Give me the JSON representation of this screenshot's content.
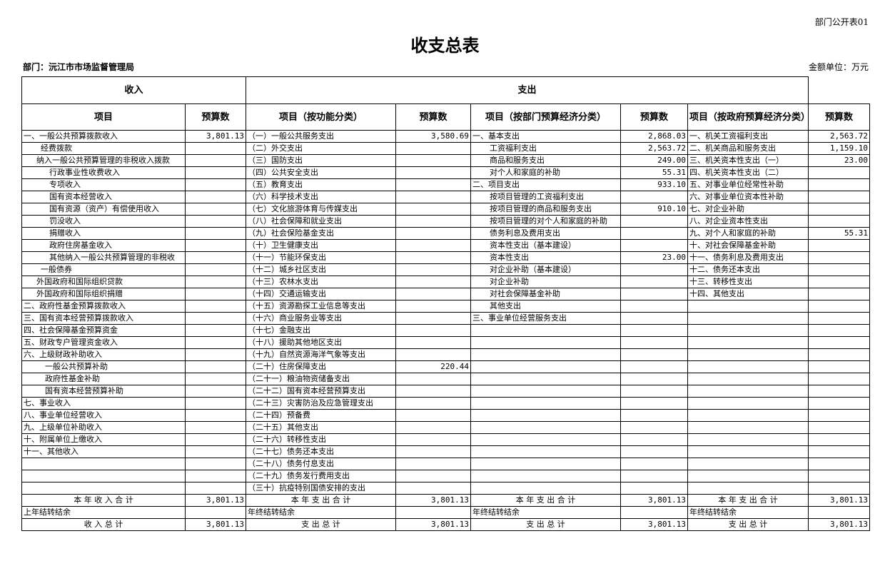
{
  "form_no": "部门公开表01",
  "title": "收支总表",
  "department": "部门：沅江市市场监督管理局",
  "unit": "金额单位：万元",
  "headers": {
    "income": "收入",
    "expense": "支出",
    "item": "项目",
    "budget": "预算数",
    "item_func": "项目（按功能分类）",
    "item_dept": "项目（按部门预算经济分类）",
    "item_gov": "项目（按政府预算经济分类）"
  },
  "income": [
    [
      "一、一般公共预算拨款收入",
      "3,801.13",
      0
    ],
    [
      "经费拨款",
      "",
      2
    ],
    [
      "纳入一般公共预算管理的非税收入拨款",
      "",
      1.5
    ],
    [
      "行政事业性收费收入",
      "",
      3
    ],
    [
      "专项收入",
      "",
      3
    ],
    [
      "国有资本经营收入",
      "",
      3
    ],
    [
      "国有资源（资产）有偿使用收入",
      "",
      3
    ],
    [
      "罚没收入",
      "",
      3
    ],
    [
      "捐赠收入",
      "",
      3
    ],
    [
      "政府住房基金收入",
      "",
      3
    ],
    [
      "其他纳入一般公共预算管理的非税收",
      "",
      3
    ],
    [
      "一般债券",
      "",
      2
    ],
    [
      "外国政府和国际组织贷款",
      "",
      1.5
    ],
    [
      "外国政府和国际组织捐赠",
      "",
      1.5
    ],
    [
      "二、政府性基金预算拨款收入",
      "",
      0
    ],
    [
      "三、国有资本经营预算拨款收入",
      "",
      0
    ],
    [
      "四、社会保障基金预算资金",
      "",
      0
    ],
    [
      "五、财政专户管理资金收入",
      "",
      0
    ],
    [
      "六、上级财政补助收入",
      "",
      0
    ],
    [
      "一般公共预算补助",
      "",
      2.5
    ],
    [
      "政府性基金补助",
      "",
      2.5
    ],
    [
      "国有资本经营预算补助",
      "",
      2.5
    ],
    [
      "七、事业收入",
      "",
      0
    ],
    [
      "八、事业单位经营收入",
      "",
      0
    ],
    [
      "九、上级单位补助收入",
      "",
      0
    ],
    [
      "十、附属单位上缴收入",
      "",
      0
    ],
    [
      "十一、其他收入",
      "",
      0
    ]
  ],
  "func": [
    [
      "（一）一般公共服务支出",
      "3,580.69"
    ],
    [
      "（二）外交支出",
      ""
    ],
    [
      "（三）国防支出",
      ""
    ],
    [
      "（四）公共安全支出",
      ""
    ],
    [
      "（五）教育支出",
      ""
    ],
    [
      "（六）科学技术支出",
      ""
    ],
    [
      "（七）文化旅游体育与传媒支出",
      ""
    ],
    [
      "（八）社会保障和就业支出",
      ""
    ],
    [
      "（九）社会保险基金支出",
      ""
    ],
    [
      "（十）卫生健康支出",
      ""
    ],
    [
      "（十一）节能环保支出",
      ""
    ],
    [
      "（十二）城乡社区支出",
      ""
    ],
    [
      "（十三）农林水支出",
      ""
    ],
    [
      "（十四）交通运输支出",
      ""
    ],
    [
      "（十五）资源勘探工业信息等支出",
      ""
    ],
    [
      "（十六）商业服务业等支出",
      ""
    ],
    [
      "（十七）金融支出",
      ""
    ],
    [
      "（十八）援助其他地区支出",
      ""
    ],
    [
      "（十九）自然资源海洋气象等支出",
      ""
    ],
    [
      "（二十）住房保障支出",
      "220.44"
    ],
    [
      "（二十一）粮油物资储备支出",
      ""
    ],
    [
      "（二十二）国有资本经营预算支出",
      ""
    ],
    [
      "（二十三）灾害防治及应急管理支出",
      ""
    ],
    [
      "（二十四）预备费",
      ""
    ],
    [
      "（二十五）其他支出",
      ""
    ],
    [
      "（二十六）转移性支出",
      ""
    ],
    [
      "（二十七）债务还本支出",
      ""
    ],
    [
      "（二十八）债务付息支出",
      ""
    ],
    [
      "（二十九）债务发行费用支出",
      ""
    ],
    [
      "（三十）抗疫特别国债安排的支出",
      ""
    ]
  ],
  "dept": [
    [
      "一、基本支出",
      "2,868.03",
      0
    ],
    [
      "工资福利支出",
      "2,563.72",
      2
    ],
    [
      "商品和服务支出",
      "249.00",
      2
    ],
    [
      "对个人和家庭的补助",
      "55.31",
      2
    ],
    [
      "二、项目支出",
      "933.10",
      0
    ],
    [
      "按项目管理的工资福利支出",
      "",
      2
    ],
    [
      "按项目管理的商品和服务支出",
      "910.10",
      2
    ],
    [
      "按项目管理的对个人和家庭的补助",
      "",
      2
    ],
    [
      "债务利息及费用支出",
      "",
      2
    ],
    [
      "资本性支出（基本建设）",
      "",
      2
    ],
    [
      "资本性支出",
      "23.00",
      2
    ],
    [
      "对企业补助（基本建设）",
      "",
      2
    ],
    [
      "对企业补助",
      "",
      2
    ],
    [
      "对社会保障基金补助",
      "",
      2
    ],
    [
      "其他支出",
      "",
      2
    ],
    [
      "三、事业单位经营服务支出",
      "",
      0
    ]
  ],
  "gov": [
    [
      "一、机关工资福利支出",
      "2,563.72"
    ],
    [
      "二、机关商品和服务支出",
      "1,159.10"
    ],
    [
      "三、机关资本性支出（一）",
      "23.00"
    ],
    [
      "四、机关资本性支出（二）",
      ""
    ],
    [
      "五、对事业单位经常性补助",
      ""
    ],
    [
      "六、对事业单位资本性补助",
      ""
    ],
    [
      "七、对企业补助",
      ""
    ],
    [
      "八、对企业资本性支出",
      ""
    ],
    [
      "九、对个人和家庭的补助",
      "55.31"
    ],
    [
      "十、对社会保障基金补助",
      ""
    ],
    [
      "十一、债务利息及费用支出",
      ""
    ],
    [
      "十二、债务还本支出",
      ""
    ],
    [
      "十三、转移性支出",
      ""
    ],
    [
      "十四、其他支出",
      ""
    ]
  ],
  "totals": {
    "year_income": "本 年 收 入 合 计",
    "year_income_val": "3,801.13",
    "year_expense": "本 年 支 出 合 计",
    "year_expense_val": "3,801.13",
    "carry_in": "上年结转结余",
    "carry_out": "年终结转结余",
    "grand_income": "收 入 总 计",
    "grand_income_val": "3,801.13",
    "grand_expense": "支 出 总 计",
    "grand_expense_val": "3,801.13"
  }
}
